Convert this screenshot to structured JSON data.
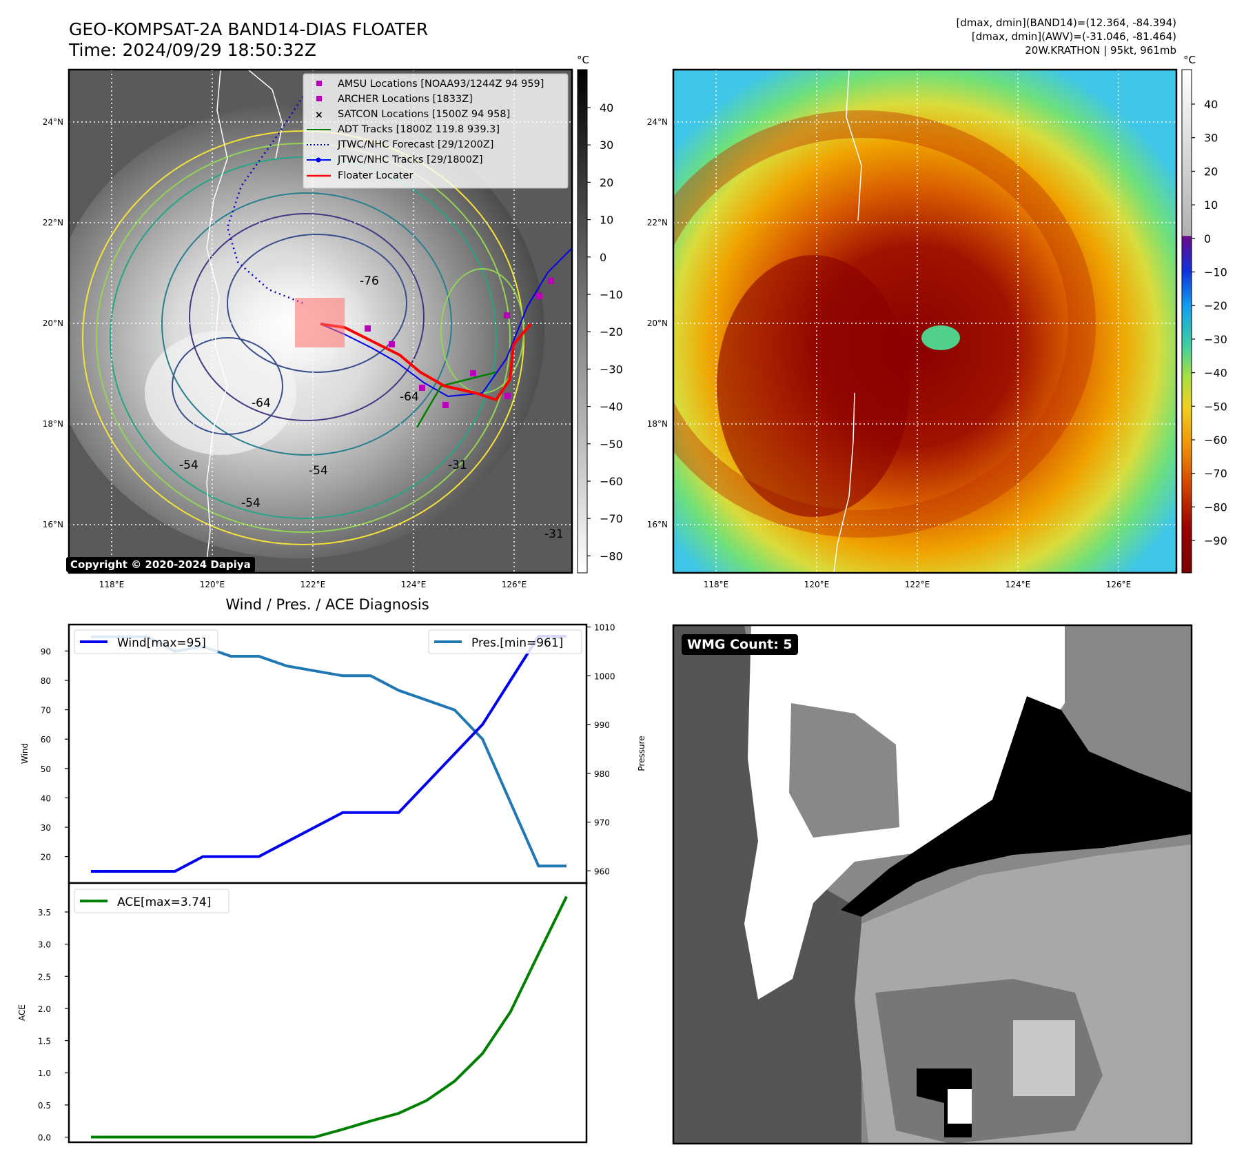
{
  "header": {
    "title": "GEO-KOMPSAT-2A BAND14-DIAS FLOATER",
    "time": "Time: 2024/09/29 18:50:32Z",
    "info_line1": "[dmax, dmin](BAND14)=(12.364, -84.394)",
    "info_line2": "[dmax, dmin](AWV)=(-31.046, -81.464)",
    "info_line3": "20W.KRATHON | 95kt, 961mb"
  },
  "copyright": "Copyright © 2020-2024 Dapiya",
  "map": {
    "lon_labels": [
      "118°E",
      "120°E",
      "122°E",
      "124°E",
      "126°E"
    ],
    "lat_labels": [
      "24°N",
      "22°N",
      "20°N",
      "18°N",
      "16°N"
    ],
    "contour_labels": [
      "-76",
      "-64",
      "-64",
      "-54",
      "-54",
      "-54",
      "-31",
      "-31"
    ],
    "legend": [
      {
        "label": "AMSU Locations [NOAA93/1244Z 94 959]",
        "color": "#bb00bb",
        "kind": "square"
      },
      {
        "label": "ARCHER Locations [1833Z]",
        "color": "#bb00bb",
        "kind": "square"
      },
      {
        "label": "SATCON Locations [1500Z 94 958]",
        "color": "#00aaaa",
        "kind": "x"
      },
      {
        "label": "ADT Tracks [1800Z 119.8 939.3]",
        "color": "#008000",
        "kind": "line"
      },
      {
        "label": "JTWC/NHC Forecast [29/1200Z]",
        "color": "#0000cc",
        "kind": "dotted"
      },
      {
        "label": "JTWC/NHC Tracks [29/1800Z]",
        "color": "#0000ee",
        "kind": "line-dot"
      },
      {
        "label": "Floater Locater",
        "color": "#ff0000",
        "kind": "line"
      }
    ]
  },
  "colorbar_ir": {
    "unit": "°C",
    "ticks": [
      "40",
      "30",
      "20",
      "10",
      "0",
      "−10",
      "−20",
      "−30",
      "−40",
      "−50",
      "−60",
      "−70",
      "−80"
    ]
  },
  "colorbar_awv": {
    "unit": "°C",
    "ticks": [
      "40",
      "30",
      "20",
      "10",
      "0",
      "−10",
      "−20",
      "−30",
      "−40",
      "−50",
      "−60",
      "−70",
      "−80",
      "−90"
    ]
  },
  "wmg": {
    "label": "WMG Count: 5"
  },
  "colors": {
    "wind": "#0000ee",
    "pressure": "#1f77b4",
    "ace": "#008000",
    "floater": "#ff0000"
  },
  "chart_data": [
    {
      "type": "line",
      "title": "Wind / Pres. / ACE Diagnosis",
      "xlabel": "",
      "ylabel": "Wind",
      "ylabel_right": "Pressure",
      "ylim": [
        11,
        99
      ],
      "ylim_right": [
        957.5,
        1010.5
      ],
      "yticks": [
        20,
        30,
        40,
        50,
        60,
        70,
        80,
        90
      ],
      "yticks_right": [
        960,
        970,
        980,
        990,
        1000,
        1010
      ],
      "x": [
        0,
        1,
        2,
        3,
        4,
        5,
        6,
        7,
        8,
        9,
        10,
        11,
        12,
        13,
        14,
        15,
        16,
        17
      ],
      "series": [
        {
          "name": "Wind[max=95]",
          "axis": "left",
          "values": [
            15,
            15,
            15,
            15,
            20,
            20,
            20,
            25,
            30,
            35,
            35,
            35,
            45,
            55,
            65,
            80,
            95,
            95
          ]
        },
        {
          "name": "Pres.[min=961]",
          "axis": "right",
          "values": [
            1008,
            1008,
            1008,
            1005,
            1006,
            1004,
            1004,
            1002,
            1001,
            1000,
            1000,
            997,
            995,
            993,
            987,
            974,
            961,
            961
          ]
        }
      ]
    },
    {
      "type": "line",
      "title": "",
      "xlabel": "",
      "ylabel": "ACE",
      "ylim": [
        -0.08,
        3.95
      ],
      "yticks": [
        0.0,
        0.5,
        1.0,
        1.5,
        2.0,
        2.5,
        3.0,
        3.5
      ],
      "ytick_labels": [
        "0.0",
        "0.5",
        "1.0",
        "1.5",
        "2.0",
        "2.5",
        "3.0",
        "3.5"
      ],
      "x": [
        0,
        1,
        2,
        3,
        4,
        5,
        6,
        7,
        8,
        9,
        10,
        11,
        12,
        13,
        14,
        15,
        16,
        17
      ],
      "series": [
        {
          "name": "ACE[max=3.74]",
          "values": [
            0,
            0,
            0,
            0,
            0,
            0,
            0,
            0,
            0,
            0.12,
            0.25,
            0.37,
            0.57,
            0.87,
            1.3,
            1.95,
            2.85,
            3.74
          ]
        }
      ]
    }
  ]
}
